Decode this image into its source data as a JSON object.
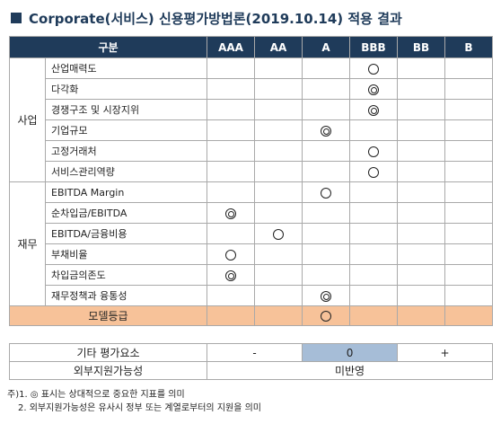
{
  "title": "Corporate(서비스) 신용평가방법론(2019.10.14) 적용 결과",
  "header": {
    "gubun": "구분",
    "grades": [
      "AAA",
      "AA",
      "A",
      "BBB",
      "BB",
      "B"
    ]
  },
  "categories": [
    {
      "name": "사업",
      "rows": [
        {
          "label": "산업매력도",
          "grade": "BBB",
          "mark": "single"
        },
        {
          "label": "다각화",
          "grade": "BBB",
          "mark": "double"
        },
        {
          "label": "경쟁구조 및 시장지위",
          "grade": "BBB",
          "mark": "double"
        },
        {
          "label": "기업규모",
          "grade": "A",
          "mark": "double"
        },
        {
          "label": "고정거래처",
          "grade": "BBB",
          "mark": "single"
        },
        {
          "label": "서비스관리역량",
          "grade": "BBB",
          "mark": "single"
        }
      ]
    },
    {
      "name": "재무",
      "rows": [
        {
          "label": "EBITDA Margin",
          "grade": "A",
          "mark": "single"
        },
        {
          "label": "순차입금/EBITDA",
          "grade": "AAA",
          "mark": "double"
        },
        {
          "label": "EBITDA/금융비용",
          "grade": "AA",
          "mark": "single"
        },
        {
          "label": "부채비율",
          "grade": "AAA",
          "mark": "single"
        },
        {
          "label": "차입금의존도",
          "grade": "AAA",
          "mark": "double"
        },
        {
          "label": "재무정책과 융통성",
          "grade": "A",
          "mark": "double"
        }
      ]
    }
  ],
  "summary": {
    "label": "모델등급",
    "grade": "A",
    "mark": "single"
  },
  "other_factors": {
    "label": "기타 평가요소",
    "minus": "-",
    "zero": "0",
    "plus": "+"
  },
  "external_support": {
    "label": "외부지원가능성",
    "value": "미반영"
  },
  "notes": [
    "주)1. ◎ 표시는 상대적으로 중요한 지표를 의미",
    "2. 외부지원가능성은 유사시 정부 또는 계열로부터의 지원을 의미"
  ],
  "colors": {
    "header": "#1f3b5a",
    "summary_row": "#f7c299",
    "highlight": "#a6bdd7"
  }
}
